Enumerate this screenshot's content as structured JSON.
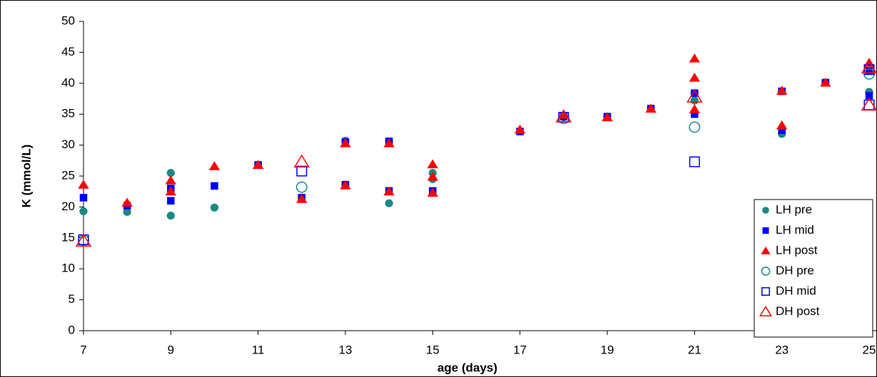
{
  "chart_data": {
    "type": "scatter",
    "x_label": "age (days)",
    "y_label": "K (mmol/L)",
    "xlim": [
      7,
      25
    ],
    "xticks": [
      7,
      9,
      11,
      13,
      15,
      17,
      19,
      21,
      23,
      25
    ],
    "ylim": [
      0,
      50
    ],
    "yticks": [
      0,
      5,
      10,
      15,
      20,
      25,
      30,
      35,
      40,
      45,
      50
    ],
    "legend": "lower-right",
    "series": [
      {
        "name": "LH pre",
        "color": "#1a8a84",
        "marker": "circle",
        "filled": true,
        "x": [
          7,
          8,
          9,
          9,
          10,
          11,
          12,
          13,
          13,
          14,
          14,
          15,
          15,
          17,
          18,
          19,
          20,
          21,
          21,
          23,
          23,
          24,
          25
        ],
        "y": [
          19.3,
          19.2,
          25.5,
          18.6,
          19.9,
          26.8,
          21.5,
          30.7,
          23.6,
          30.6,
          20.6,
          25.5,
          24.5,
          32.2,
          34.5,
          34.6,
          35.9,
          37.2,
          38.3,
          31.8,
          38.7,
          40.1,
          38.6
        ]
      },
      {
        "name": "LH mid",
        "color": "#0000ff",
        "marker": "square",
        "filled": true,
        "x": [
          7,
          8,
          9,
          9,
          10,
          11,
          12,
          13,
          13,
          14,
          14,
          15,
          17,
          18,
          19,
          20,
          21,
          21,
          23,
          23,
          24,
          25,
          25
        ],
        "y": [
          21.5,
          20.2,
          23,
          21,
          23.4,
          26.8,
          21.5,
          30.5,
          23.6,
          30.6,
          22.6,
          22.6,
          32.2,
          34.6,
          34.6,
          35.9,
          35,
          38.4,
          32.4,
          38.7,
          40.1,
          38,
          42
        ]
      },
      {
        "name": "LH post",
        "color": "#ff0000",
        "marker": "triangle",
        "filled": true,
        "x": [
          7,
          8,
          9,
          9,
          10,
          11,
          12,
          13,
          13,
          14,
          14,
          15,
          15,
          15,
          17,
          18,
          19,
          20,
          21,
          21,
          21,
          23,
          23,
          24,
          25
        ],
        "y": [
          23.6,
          20.7,
          24.3,
          22.5,
          26.6,
          26.8,
          21.3,
          30.3,
          23.5,
          30.3,
          22.5,
          26.9,
          24.9,
          22.3,
          32.5,
          34.9,
          34.5,
          35.9,
          44,
          40.9,
          35.8,
          38.8,
          33.2,
          40.1,
          43.3
        ]
      },
      {
        "name": "DH pre",
        "color": "#1a8a84",
        "marker": "circle",
        "filled": false,
        "x": [
          7,
          12,
          18,
          21,
          25
        ],
        "y": [
          14.6,
          23.2,
          34.3,
          32.9,
          41.5
        ]
      },
      {
        "name": "DH mid",
        "color": "#0000ff",
        "marker": "square",
        "filled": false,
        "x": [
          7,
          12,
          18,
          21,
          25,
          25
        ],
        "y": [
          14.7,
          25.8,
          34.5,
          27.3,
          42.2,
          36.5
        ]
      },
      {
        "name": "DH post",
        "color": "#ff0000",
        "marker": "triangle",
        "filled": false,
        "x": [
          7,
          12,
          18,
          21,
          25,
          25
        ],
        "y": [
          14.5,
          27.3,
          34.6,
          37.8,
          42.5,
          36.5
        ]
      }
    ]
  }
}
